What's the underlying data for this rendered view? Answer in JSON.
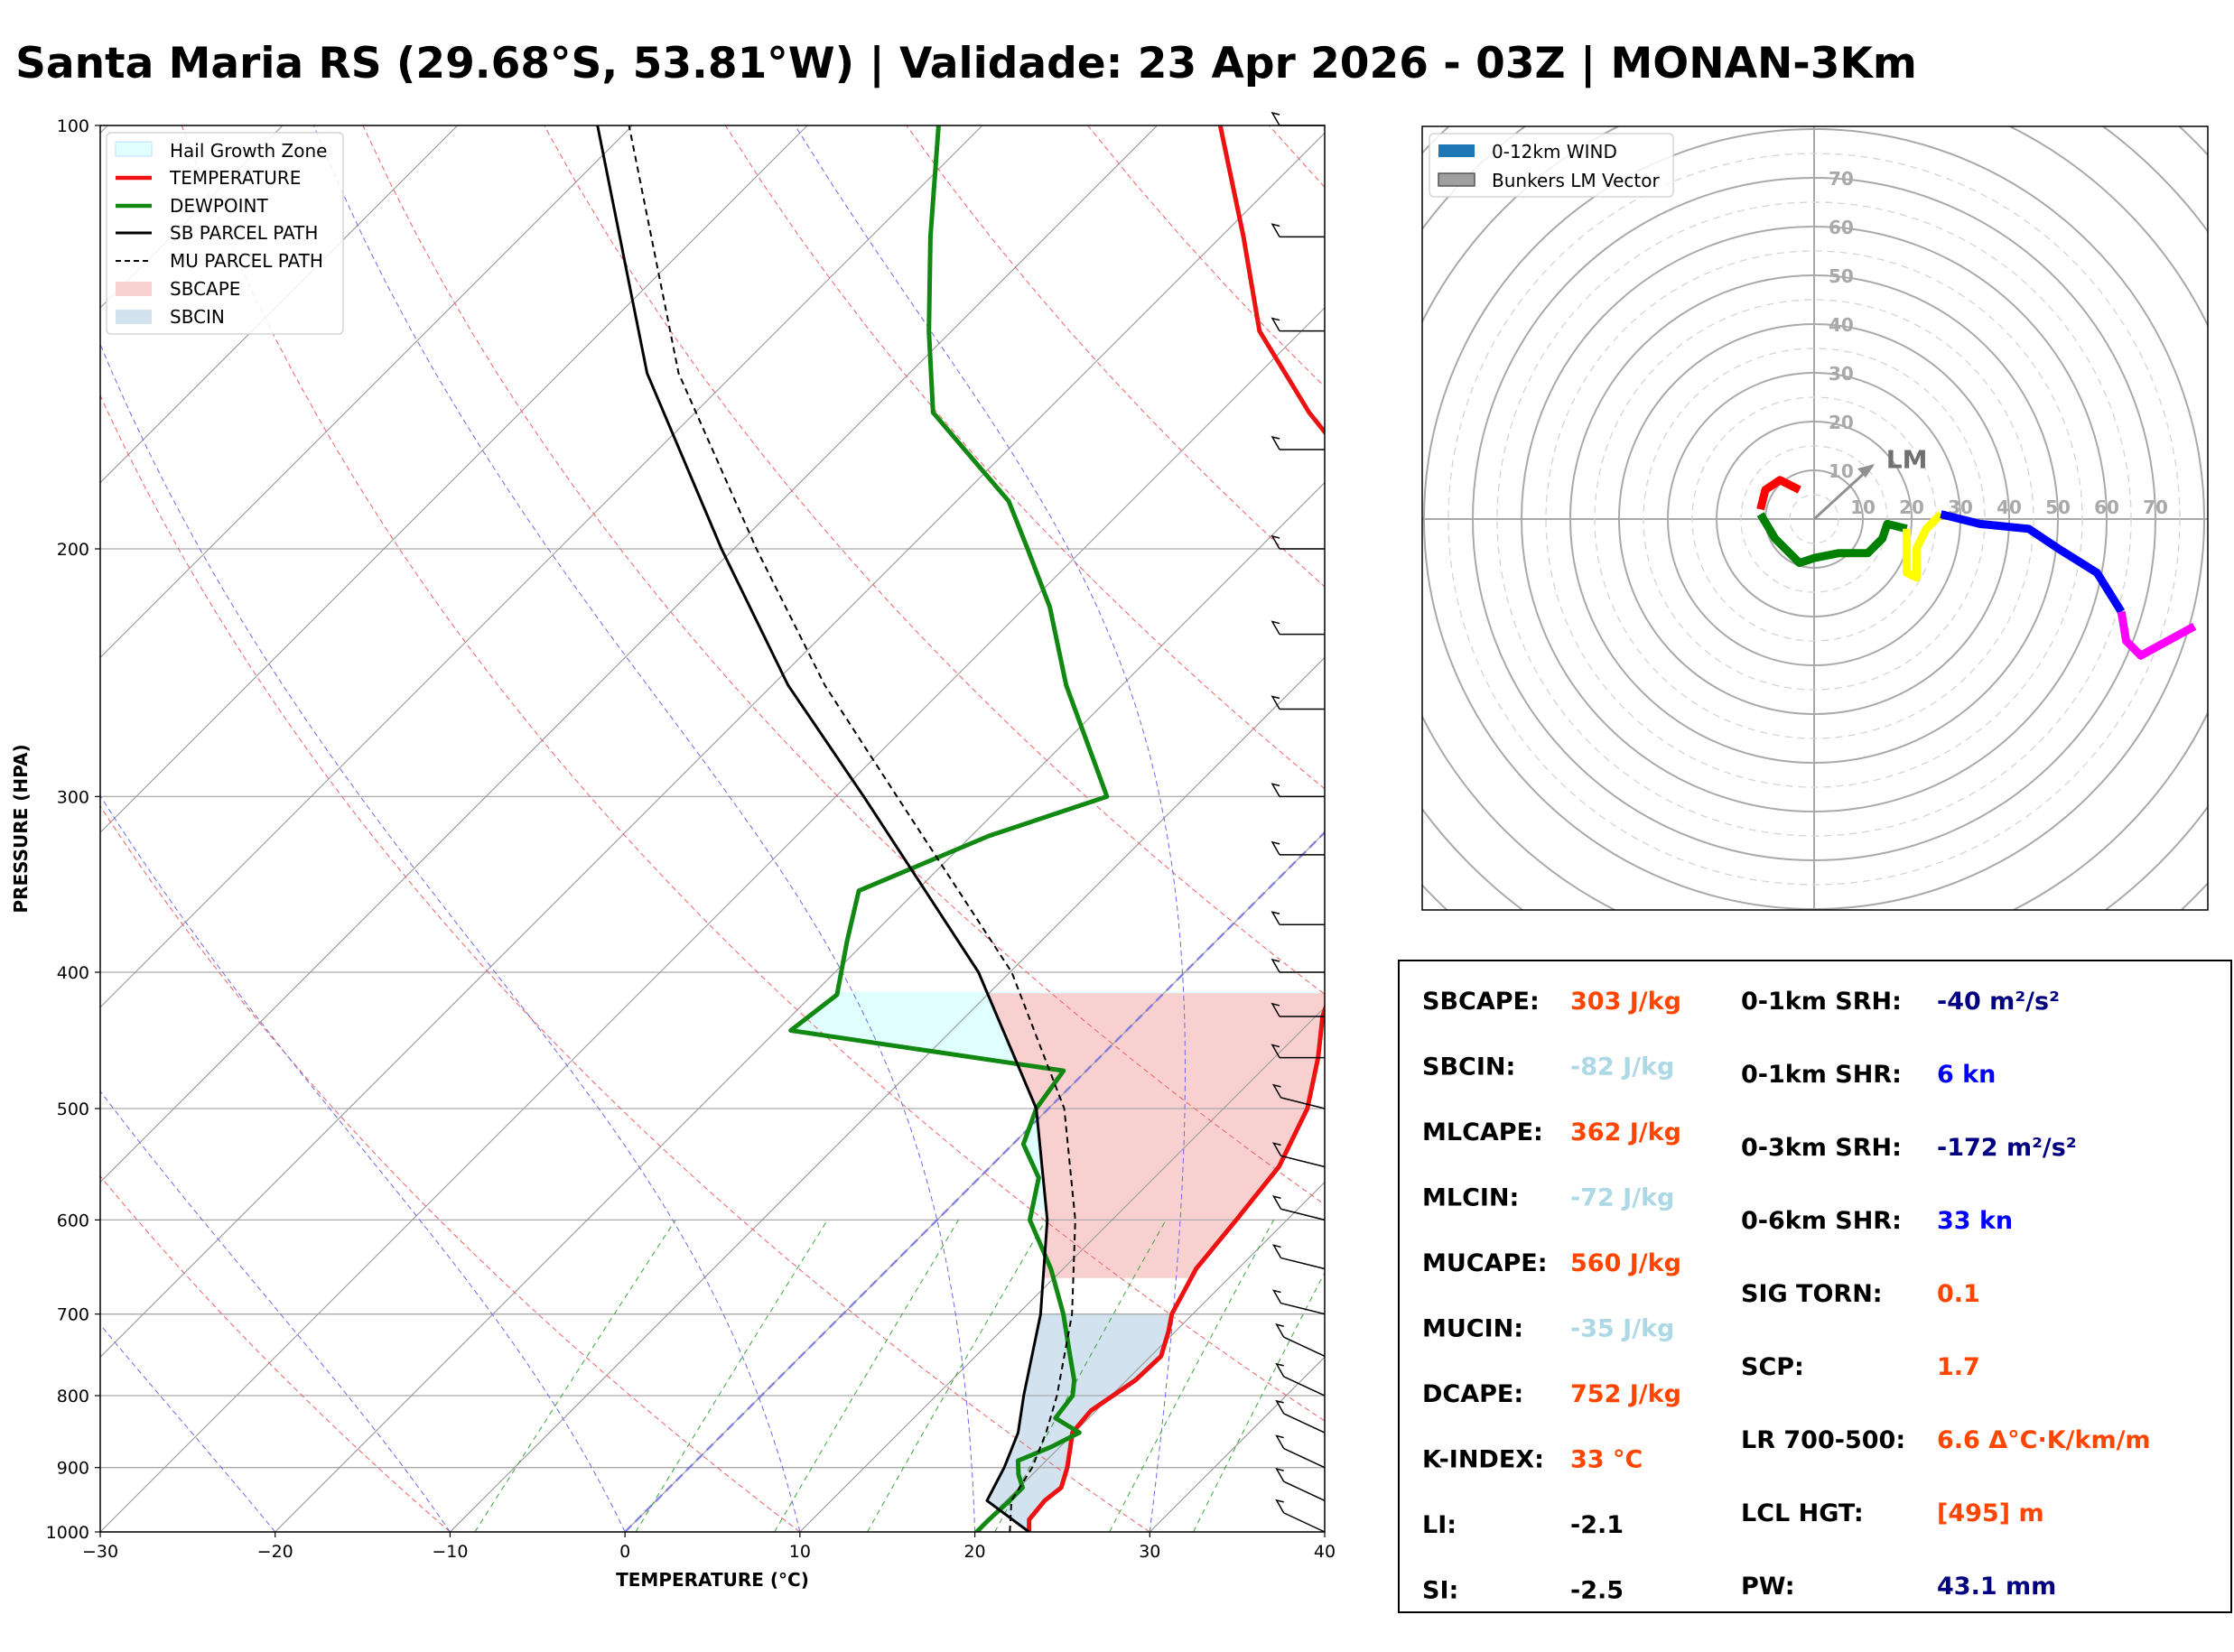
{
  "title": "Santa Maria RS (29.68°S, 53.81°W) | Validade: 23 Apr 2026 - 03Z | MONAN-3Km",
  "chart_data": [
    {
      "type": "line",
      "subtype": "skew-t",
      "xlabel": "TEMPERATURE (°C)",
      "ylabel": "PRESSURE (HPA)",
      "xlim": [
        -30,
        40
      ],
      "ylim": [
        1000,
        100
      ],
      "y_scale": "log",
      "x_ticks": [
        -30,
        -20,
        -10,
        0,
        10,
        20,
        30,
        40
      ],
      "x_tick_labels": [
        "−30",
        "−20",
        "−10",
        "0",
        "10",
        "20",
        "30",
        "40"
      ],
      "y_ticks": [
        1000,
        900,
        800,
        700,
        600,
        500,
        400,
        300,
        200,
        100
      ],
      "grid": true,
      "legend_placement": "top-left",
      "legend": [
        "Hail Growth Zone",
        "TEMPERATURE",
        "DEWPOINT",
        "SB PARCEL PATH",
        "MU PARCEL PATH",
        "SBCAPE",
        "SBCIN"
      ],
      "series": [
        {
          "name": "TEMPERATURE",
          "color": "#ee1111",
          "points": [
            [
              1000,
              23.1
            ],
            [
              980,
              22.4
            ],
            [
              950,
              22.2
            ],
            [
              930,
              22.4
            ],
            [
              900,
              21.6
            ],
            [
              870,
              20.6
            ],
            [
              850,
              19.9
            ],
            [
              820,
              19.7
            ],
            [
              800,
              20.1
            ],
            [
              780,
              20.5
            ],
            [
              750,
              20.6
            ],
            [
              720,
              19.6
            ],
            [
              700,
              18.8
            ],
            [
              650,
              17.6
            ],
            [
              600,
              17.1
            ],
            [
              550,
              16.5
            ],
            [
              500,
              14.8
            ],
            [
              460,
              12.5
            ],
            [
              430,
              10.4
            ],
            [
              410,
              9.3
            ],
            [
              380,
              8.0
            ],
            [
              350,
              6.2
            ],
            [
              300,
              3.0
            ],
            [
              270,
              -0.6
            ],
            [
              240,
              -5.1
            ],
            [
              220,
              -8.8
            ],
            [
              200,
              -12.6
            ],
            [
              180,
              -17.5
            ],
            [
              160,
              -24.9
            ],
            [
              140,
              -32.4
            ],
            [
              120,
              -38.7
            ],
            [
              100,
              -46.4
            ]
          ]
        },
        {
          "name": "DEWPOINT",
          "color": "#118811",
          "points": [
            [
              1000,
              20.1
            ],
            [
              980,
              20.1
            ],
            [
              950,
              20.2
            ],
            [
              930,
              20.2
            ],
            [
              910,
              19.2
            ],
            [
              890,
              18.4
            ],
            [
              870,
              19.5
            ],
            [
              850,
              20.3
            ],
            [
              830,
              18.1
            ],
            [
              800,
              17.8
            ],
            [
              780,
              17.0
            ],
            [
              750,
              15.4
            ],
            [
              700,
              12.6
            ],
            [
              650,
              9.3
            ],
            [
              600,
              5.3
            ],
            [
              560,
              3.4
            ],
            [
              530,
              0.6
            ],
            [
              500,
              -0.7
            ],
            [
              470,
              -1.3
            ],
            [
              440,
              -19.2
            ],
            [
              415,
              -18.6
            ],
            [
              380,
              -21.1
            ],
            [
              350,
              -23.3
            ],
            [
              320,
              -19.0
            ],
            [
              300,
              -14.5
            ],
            [
              250,
              -23.2
            ],
            [
              220,
              -28.6
            ],
            [
              200,
              -33.2
            ],
            [
              185,
              -37.0
            ],
            [
              160,
              -46.4
            ],
            [
              140,
              -51.3
            ],
            [
              120,
              -56.6
            ],
            [
              100,
              -62.5
            ]
          ]
        },
        {
          "name": "SB PARCEL PATH",
          "color": "#000000",
          "points": [
            [
              1000,
              23.1
            ],
            [
              950,
              18.9
            ],
            [
              900,
              18.0
            ],
            [
              850,
              16.8
            ],
            [
              800,
              15.0
            ],
            [
              700,
              11.3
            ],
            [
              600,
              6.3
            ],
            [
              500,
              -0.7
            ],
            [
              400,
              -11.8
            ],
            [
              300,
              -28.4
            ],
            [
              250,
              -39.1
            ],
            [
              200,
              -50.7
            ],
            [
              150,
              -65.0
            ],
            [
              100,
              -82.0
            ]
          ]
        },
        {
          "name": "MU PARCEL PATH",
          "color": "#000000",
          "points": [
            [
              1000,
              22.0
            ],
            [
              950,
              20.3
            ],
            [
              900,
              19.6
            ],
            [
              850,
              18.4
            ],
            [
              800,
              16.9
            ],
            [
              700,
              13.1
            ],
            [
              600,
              7.9
            ],
            [
              500,
              0.9
            ],
            [
              400,
              -9.9
            ],
            [
              300,
              -26.5
            ],
            [
              250,
              -37.0
            ],
            [
              200,
              -48.7
            ],
            [
              150,
              -63.2
            ],
            [
              100,
              -80.2
            ]
          ]
        }
      ],
      "fills": [
        {
          "name": "Hail Growth Zone",
          "color": "#e0ffff",
          "pressure_range": [
            590,
            413
          ]
        },
        {
          "name": "SBCAPE",
          "color": "#f9d0d0"
        },
        {
          "name": "SBCIN",
          "color": "#d2e2ee"
        }
      ],
      "wind_barbs_pressure": [
        1000,
        950,
        900,
        850,
        800,
        750,
        700,
        650,
        600,
        550,
        500,
        460,
        430,
        400,
        370,
        330,
        300,
        260,
        230,
        200,
        170,
        140,
        120,
        100
      ]
    },
    {
      "type": "line",
      "subtype": "hodograph",
      "legend": [
        "0-12km WIND",
        "Bunkers LM Vector"
      ],
      "legend_placement": "top-left",
      "rings": [
        10,
        20,
        30,
        40,
        50,
        60,
        70
      ],
      "ring_labels": [
        "10",
        "20",
        "30",
        "40",
        "50",
        "60",
        "70"
      ],
      "lm_label": "LM",
      "lm_vector": [
        12,
        11
      ],
      "segments": [
        {
          "color": "#ff0000",
          "points": [
            [
              -3,
              6
            ],
            [
              -7,
              8
            ],
            [
              -10,
              6
            ],
            [
              -11,
              2
            ]
          ]
        },
        {
          "color": "#008000",
          "points": [
            [
              -11,
              1
            ],
            [
              -8,
              -4
            ],
            [
              -3,
              -9
            ],
            [
              0,
              -8
            ],
            [
              5,
              -7
            ],
            [
              11,
              -7
            ],
            [
              14,
              -4
            ],
            [
              15,
              -1
            ],
            [
              19,
              -2
            ]
          ]
        },
        {
          "color": "#ffff00",
          "points": [
            [
              19,
              -2
            ],
            [
              19,
              -6
            ],
            [
              19,
              -11
            ],
            [
              21,
              -12
            ],
            [
              21,
              -6
            ],
            [
              23,
              -2
            ],
            [
              26,
              1
            ]
          ]
        },
        {
          "color": "#0000ff",
          "points": [
            [
              26,
              1
            ],
            [
              34,
              -1
            ],
            [
              44,
              -2
            ],
            [
              50,
              -6
            ],
            [
              58,
              -11
            ],
            [
              63,
              -19
            ]
          ]
        },
        {
          "color": "#ff00ff",
          "points": [
            [
              63,
              -19
            ],
            [
              64,
              -25
            ],
            [
              67,
              -28
            ],
            [
              78,
              -22
            ]
          ]
        }
      ]
    }
  ],
  "params": {
    "left": [
      {
        "label": "SBCAPE:",
        "value": "303 J/kg",
        "color": "#ff4500"
      },
      {
        "label": "SBCIN:",
        "value": "-82 J/kg",
        "color": "#add8e6"
      },
      {
        "label": "MLCAPE:",
        "value": "362 J/kg",
        "color": "#ff4500"
      },
      {
        "label": "MLCIN:",
        "value": "-72 J/kg",
        "color": "#add8e6"
      },
      {
        "label": "MUCAPE:",
        "value": "560 J/kg",
        "color": "#ff4500"
      },
      {
        "label": "MUCIN:",
        "value": "-35 J/kg",
        "color": "#add8e6"
      },
      {
        "label": "DCAPE:",
        "value": "752 J/kg",
        "color": "#ff4500"
      },
      {
        "label": "K-INDEX:",
        "value": "33 °C",
        "color": "#ff4500"
      },
      {
        "label": "LI:",
        "value": "-2.1",
        "color": "#000000"
      },
      {
        "label": "SI:",
        "value": "-2.5",
        "color": "#000000"
      }
    ],
    "right": [
      {
        "label": "0-1km SRH:",
        "value": "-40 m²/s²",
        "color": "#000080"
      },
      {
        "label": "0-1km SHR:",
        "value": "6 kn",
        "color": "#0000ff"
      },
      {
        "label": "0-3km SRH:",
        "value": "-172 m²/s²",
        "color": "#000080"
      },
      {
        "label": "0-6km SHR:",
        "value": "33 kn",
        "color": "#0000ff"
      },
      {
        "label": "SIG TORN:",
        "value": "0.1",
        "color": "#ff4500"
      },
      {
        "label": "SCP:",
        "value": "1.7",
        "color": "#ff4500"
      },
      {
        "label": "LR 700-500:",
        "value": "6.6 Δ°C·K/km/m",
        "color": "#ff4500"
      },
      {
        "label": "LCL HGT:",
        "value": "[495] m",
        "color": "#ff4500"
      },
      {
        "label": "PW:",
        "value": "43.1 mm",
        "color": "#000080"
      }
    ]
  }
}
